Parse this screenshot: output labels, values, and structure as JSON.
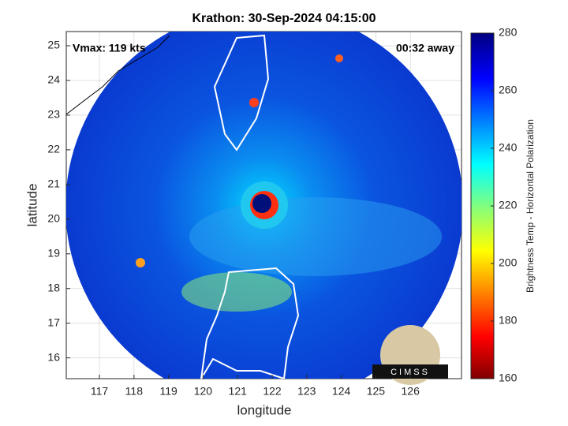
{
  "chart_data": {
    "type": "map",
    "title": "Krathon: 30-Sep-2024 04:15:00",
    "xlabel": "longitude",
    "ylabel": "latitude",
    "xlim": [
      116.04,
      127.48
    ],
    "xticks": [
      117,
      118,
      119,
      120,
      121,
      122,
      123,
      124,
      125,
      126
    ],
    "ylim": [
      15.4,
      25.41
    ],
    "yticks": [
      16,
      17,
      18,
      19,
      20,
      21,
      22,
      23,
      24,
      25
    ],
    "grid": true,
    "annotations": [
      "Vmax: 119 kts",
      "00:32 away"
    ],
    "colorbar": {
      "label": "Brightness Temp - Horizontal Polarization",
      "lim": [
        160,
        280
      ],
      "ticks": [
        160,
        180,
        200,
        220,
        240,
        260,
        280
      ]
    },
    "logo": "CIMSS"
  }
}
